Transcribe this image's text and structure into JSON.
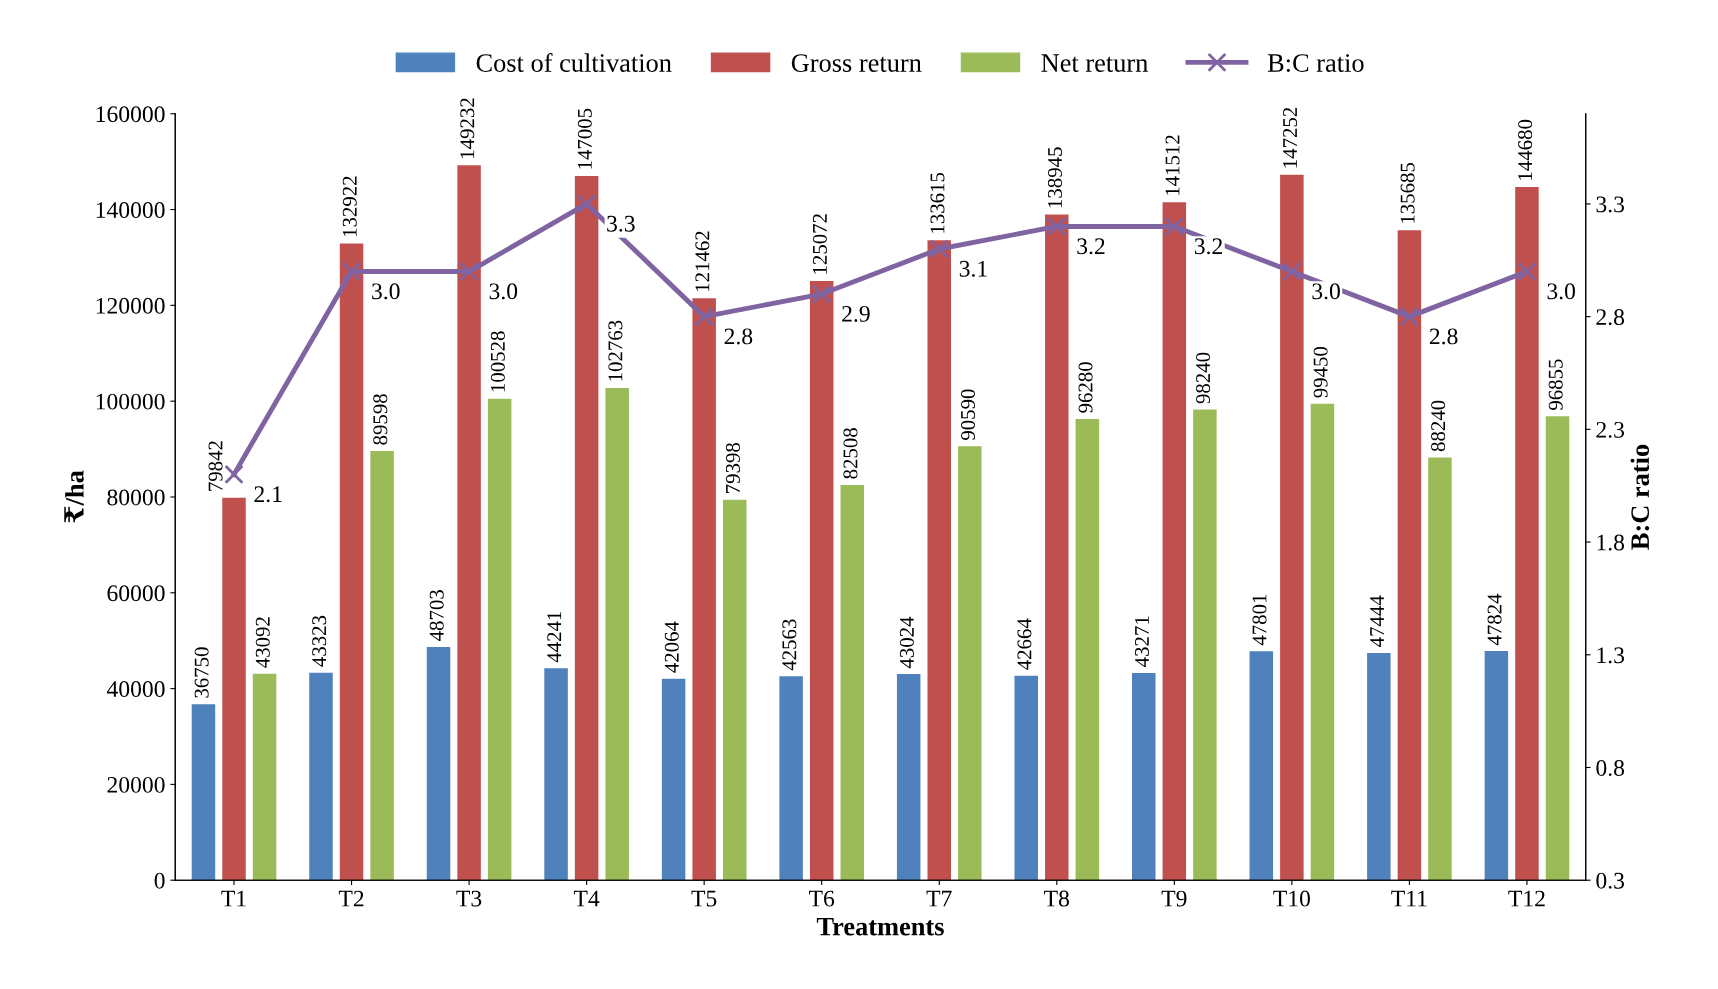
{
  "chart_data": {
    "type": "bar",
    "xlabel": "Treatments",
    "ylabel": "₹/ha",
    "y2label": "B:C ratio",
    "categories": [
      "T1",
      "T2",
      "T3",
      "T4",
      "T5",
      "T6",
      "T7",
      "T8",
      "T9",
      "T10",
      "T11",
      "T12"
    ],
    "series": [
      {
        "name": "Cost of cultivation",
        "color": "#4f81bd",
        "values": [
          36750,
          43323,
          48703,
          44241,
          42064,
          42563,
          43024,
          42664,
          43271,
          47801,
          47444,
          47824
        ]
      },
      {
        "name": "Gross return",
        "color": "#c0504d",
        "values": [
          79842,
          132922,
          149232,
          147005,
          121462,
          125072,
          133615,
          138945,
          141512,
          147252,
          135685,
          144680
        ]
      },
      {
        "name": "Net return",
        "color": "#9bbb59",
        "values": [
          43092,
          89598,
          100528,
          102763,
          79398,
          82508,
          90590,
          96280,
          98240,
          99450,
          88240,
          96855
        ]
      },
      {
        "name": "B:C ratio",
        "type": "line",
        "axis": "y2",
        "color": "#8064a2",
        "marker": "cross",
        "values": [
          2.1,
          3.0,
          3.0,
          3.3,
          2.8,
          2.9,
          3.1,
          3.2,
          3.2,
          3.0,
          2.8,
          3.0
        ],
        "value_labels": [
          "2.1",
          "3.0",
          "3.0",
          "3.3",
          "2.8",
          "2.9",
          "3.1",
          "3.2",
          "3.2",
          "3.0",
          "2.8",
          "3.0"
        ]
      }
    ],
    "ylim": [
      0,
      160000
    ],
    "yticks": [
      0,
      20000,
      40000,
      60000,
      80000,
      100000,
      120000,
      140000,
      160000
    ],
    "y2lim": [
      0.3,
      3.7
    ],
    "y2ticks": [
      0.3,
      0.8,
      1.3,
      1.8,
      2.3,
      2.8,
      3.3
    ],
    "data_labels": true,
    "grid": false,
    "legend": "top"
  }
}
